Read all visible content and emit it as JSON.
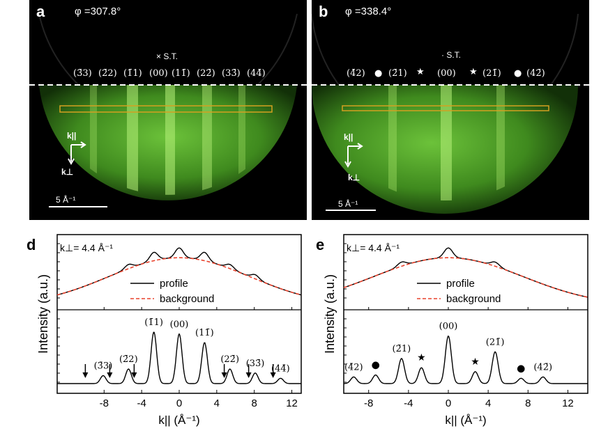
{
  "panel_a": {
    "label": "a",
    "phi": "φ =307.8°",
    "st": "× S.T.",
    "indices": [
      "(3̄3)",
      "(2̄2)",
      "(1̄1)",
      "(00)",
      "(11̄)",
      "(22̄)",
      "(33̄)",
      "(44̄)"
    ],
    "k_par": "k||",
    "k_perp": "k⊥",
    "scale": "5 Å⁻¹"
  },
  "panel_b": {
    "label": "b",
    "phi": "φ =338.4°",
    "st": "· S.T.",
    "indices": [
      "(4̄2)",
      "●",
      "(2̄1)",
      "★",
      "(00)",
      "★",
      "(21̄)",
      "●",
      "(42̄)"
    ],
    "k_par": "k||",
    "k_perp": "k⊥",
    "scale": "5 Å⁻¹"
  },
  "colors": {
    "rheed_green": "#5fb02a",
    "profile": "#000000",
    "background_line": "#e8402a",
    "roi_box": "#d4a020"
  },
  "chart_data": [
    {
      "type": "line",
      "panel": "d",
      "kperp_label": "k⊥= 4.4 Å⁻¹",
      "xlabel": "k|| (Å⁻¹)",
      "ylabel": "Intensity (a.u.)",
      "xlim": [
        -13,
        13
      ],
      "xticks": [
        "-8",
        "-4",
        "0",
        "4",
        "8",
        "12"
      ],
      "xtick_values": [
        -8,
        -4,
        0,
        4,
        8,
        12
      ],
      "legend": [
        "profile",
        "background"
      ],
      "upper_peaks_x": [
        -5.4,
        -2.7,
        0,
        2.7,
        5.4,
        8.1
      ],
      "lower_peaks": [
        {
          "label": "(3̄3)",
          "x": -8.1,
          "h": 0.12
        },
        {
          "label": "(2̄2)",
          "x": -5.4,
          "h": 0.22
        },
        {
          "label": "(1̄1)",
          "x": -2.7,
          "h": 0.78
        },
        {
          "label": "(00)",
          "x": 0,
          "h": 0.75
        },
        {
          "label": "(11̄)",
          "x": 2.7,
          "h": 0.62
        },
        {
          "label": "(22̄)",
          "x": 5.4,
          "h": 0.22
        },
        {
          "label": "(33̄)",
          "x": 8.1,
          "h": 0.16
        },
        {
          "label": "(44̄)",
          "x": 10.8,
          "h": 0.08
        }
      ],
      "arrows_x": [
        -10,
        -7.4,
        -4.8,
        4.8,
        7.4,
        10
      ]
    },
    {
      "type": "line",
      "panel": "e",
      "kperp_label": "k⊥= 4.4 Å⁻¹",
      "xlabel": "k|| (Å⁻¹)",
      "ylabel": "Intensity (a.u.)",
      "xlim": [
        -10.5,
        14
      ],
      "xticks": [
        "-8",
        "-4",
        "0",
        "4",
        "8",
        "12"
      ],
      "xtick_values": [
        -8,
        -4,
        0,
        4,
        8,
        12
      ],
      "legend": [
        "profile",
        "background"
      ],
      "upper_peaks_x": [
        -4.7,
        0,
        4.7
      ],
      "lower_peaks": [
        {
          "label": "(4̄2)",
          "x": -9.5,
          "h": 0.1
        },
        {
          "label": "●",
          "x": -7.3,
          "h": 0.13
        },
        {
          "label": "(2̄1)",
          "x": -4.7,
          "h": 0.38
        },
        {
          "label": "★",
          "x": -2.7,
          "h": 0.24
        },
        {
          "label": "(00)",
          "x": 0,
          "h": 0.72
        },
        {
          "label": "★",
          "x": 2.7,
          "h": 0.18
        },
        {
          "label": "(21̄)",
          "x": 4.7,
          "h": 0.48
        },
        {
          "label": "●",
          "x": 7.3,
          "h": 0.08
        },
        {
          "label": "(42̄)",
          "x": 9.5,
          "h": 0.1
        }
      ]
    }
  ]
}
